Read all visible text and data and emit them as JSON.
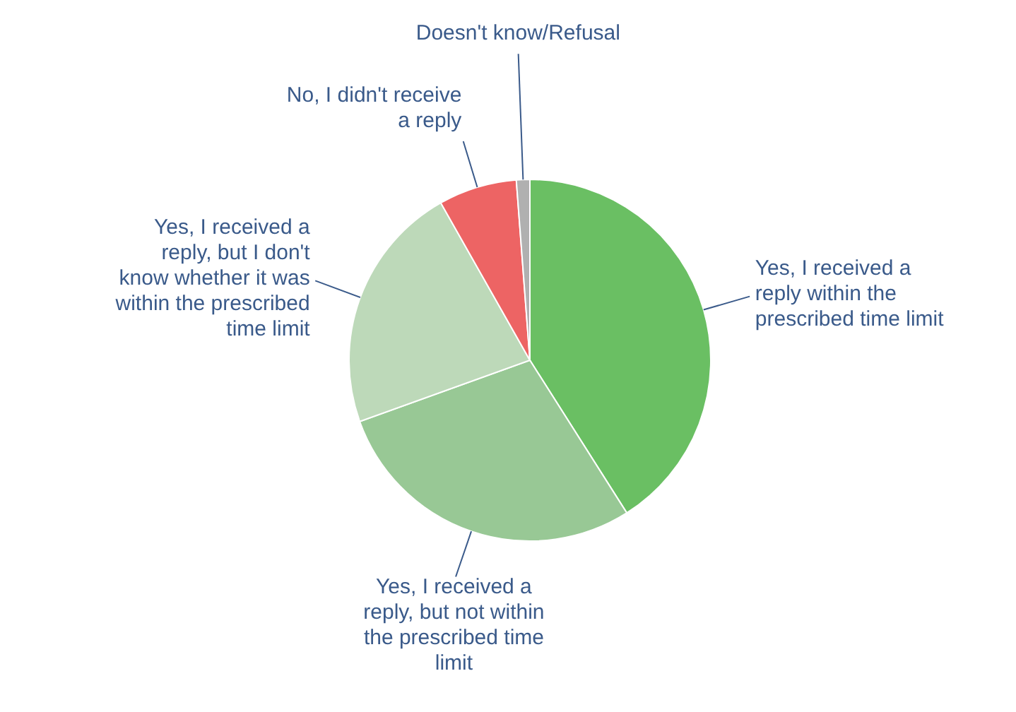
{
  "chart_data": {
    "type": "pie",
    "categories": [
      "Yes, I received a reply within the prescribed time limit",
      "Yes, I received a reply, but not within the prescribed time limit",
      "Yes, I received a reply, but I don't know whether it was within the prescribed time limit",
      "No, I didn't receive a reply",
      "Doesn't know/Refusal"
    ],
    "values": [
      41,
      28.5,
      22.3,
      7,
      1.2
    ],
    "colors": [
      "#6abf63",
      "#98c895",
      "#bdd9b9",
      "#ed6464",
      "#b0b0b0"
    ],
    "legend": false
  }
}
